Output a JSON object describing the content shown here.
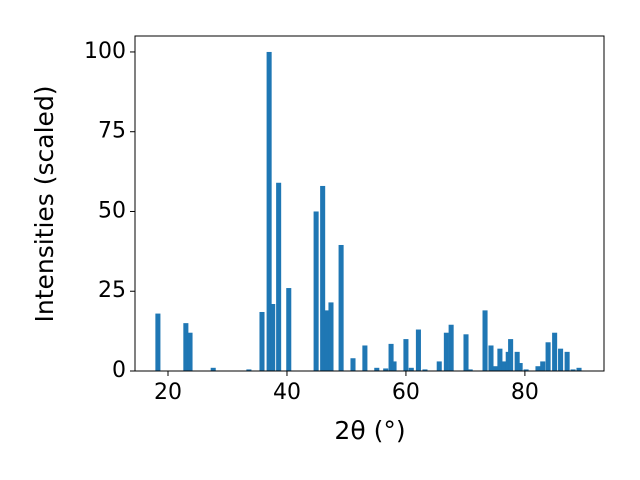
{
  "chart_data": {
    "type": "bar",
    "xlabel": "2θ (°)",
    "ylabel": "Intensities (scaled)",
    "x": [
      18.3,
      23.0,
      23.7,
      27.6,
      33.6,
      35.8,
      37.0,
      37.6,
      38.6,
      40.3,
      44.9,
      46.0,
      46.7,
      47.4,
      49.1,
      51.1,
      53.1,
      55.1,
      56.6,
      57.5,
      58.0,
      60.0,
      60.9,
      62.1,
      63.2,
      65.6,
      66.8,
      67.6,
      70.1,
      70.8,
      73.3,
      74.3,
      75.0,
      75.8,
      76.5,
      77.2,
      77.6,
      78.7,
      79.2,
      80.2,
      82.2,
      83.0,
      83.9,
      85.0,
      86.0,
      87.1,
      88.1,
      89.1
    ],
    "values": [
      18,
      15,
      12,
      1,
      0.5,
      18.5,
      100,
      21,
      59,
      26,
      50,
      58,
      19,
      21.5,
      39.5,
      4,
      8,
      1,
      0.8,
      8.5,
      3,
      10,
      1,
      13,
      0.5,
      3,
      12,
      14.5,
      11.5,
      0.5,
      19,
      8,
      1.5,
      7,
      3,
      6,
      10,
      6,
      2.5,
      0.5,
      1.5,
      3,
      9,
      12,
      7,
      6,
      0.5,
      1
    ],
    "color": "#1f77b4",
    "xlim": [
      14.45,
      93.3
    ],
    "xticks": [
      20,
      40,
      60,
      80
    ],
    "ylim": [
      0,
      105
    ],
    "yticks": [
      0,
      25,
      50,
      75,
      100
    ]
  }
}
